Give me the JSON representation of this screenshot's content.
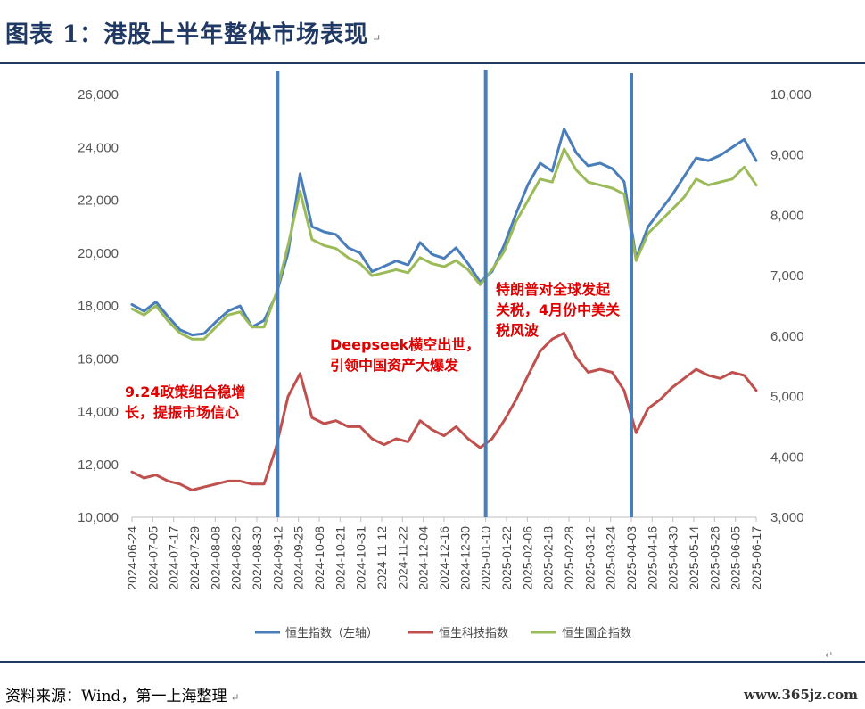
{
  "header": {
    "title": "图表 1：港股上半年整体市场表现",
    "mark": "↵"
  },
  "footer": {
    "source": "资料来源：Wind，第一上海整理",
    "mark": "↵",
    "watermark": "www.365jz.com",
    "corner_mark": "↵"
  },
  "chart_data": {
    "type": "line",
    "title": "",
    "xlabel": "",
    "ylabel": "",
    "y_left": {
      "lim": [
        10000,
        26000
      ],
      "ticks": [
        "10,000",
        "12,000",
        "14,000",
        "16,000",
        "18,000",
        "20,000",
        "22,000",
        "24,000",
        "26,000"
      ]
    },
    "y_right": {
      "lim": [
        3000,
        10000
      ],
      "ticks": [
        "3,000",
        "4,000",
        "5,000",
        "6,000",
        "7,000",
        "8,000",
        "9,000",
        "10,000"
      ]
    },
    "x_ticks": [
      "2024-06-24",
      "2024-07-05",
      "2024-07-17",
      "2024-07-29",
      "2024-08-08",
      "2024-08-20",
      "2024-08-30",
      "2024-09-12",
      "2024-09-25",
      "2024-10-08",
      "2024-10-21",
      "2024-10-31",
      "2024-11-12",
      "2024-11-22",
      "2024-12-04",
      "2024-12-16",
      "2024-12-30",
      "2025-01-10",
      "2025-01-22",
      "2025-02-06",
      "2025-02-18",
      "2025-02-28",
      "2025-03-12",
      "2025-03-24",
      "2025-04-03",
      "2025-04-16",
      "2025-04-30",
      "2025-05-14",
      "2025-05-26",
      "2025-06-05",
      "2025-06-17"
    ],
    "legend_position": "bottom",
    "series": [
      {
        "name": "恒生指数（左轴）",
        "axis": "left",
        "color": "#4a7ebb",
        "values": [
          18050,
          17800,
          18150,
          17600,
          17100,
          16900,
          16950,
          17400,
          17800,
          18000,
          17200,
          17450,
          18400,
          20000,
          23000,
          21000,
          20800,
          20700,
          20200,
          20000,
          19300,
          19500,
          19700,
          19550,
          20400,
          19950,
          19800,
          20200,
          19600,
          18900,
          19300,
          20300,
          21500,
          22600,
          23400,
          23100,
          24700,
          23800,
          23300,
          23400,
          23200,
          22700,
          19800,
          21000,
          21600,
          22200,
          22900,
          23600,
          23500,
          23700,
          24000,
          24300,
          23500
        ]
      },
      {
        "name": "恒生科技指数",
        "axis": "right",
        "color": "#c0504d",
        "values": [
          3750,
          3650,
          3700,
          3600,
          3550,
          3450,
          3500,
          3550,
          3600,
          3600,
          3550,
          3550,
          4150,
          5000,
          5380,
          4650,
          4550,
          4600,
          4500,
          4500,
          4300,
          4200,
          4300,
          4250,
          4600,
          4450,
          4350,
          4500,
          4300,
          4150,
          4300,
          4600,
          4950,
          5350,
          5750,
          5950,
          6050,
          5650,
          5400,
          5450,
          5400,
          5100,
          4400,
          4800,
          4950,
          5150,
          5300,
          5450,
          5350,
          5300,
          5400,
          5350,
          5100
        ]
      },
      {
        "name": "恒生国企指数",
        "axis": "right",
        "color": "#9bbb59",
        "values": [
          6450,
          6350,
          6500,
          6250,
          6050,
          5950,
          5950,
          6150,
          6350,
          6400,
          6150,
          6150,
          6700,
          7500,
          8400,
          7600,
          7500,
          7450,
          7300,
          7200,
          7000,
          7050,
          7100,
          7050,
          7300,
          7200,
          7150,
          7250,
          7100,
          6850,
          7100,
          7400,
          7900,
          8250,
          8600,
          8550,
          9100,
          8750,
          8550,
          8500,
          8450,
          8350,
          7250,
          7700,
          7900,
          8100,
          8300,
          8600,
          8500,
          8550,
          8600,
          8800,
          8500
        ]
      }
    ],
    "event_lines": [
      {
        "date": "2024-09-12",
        "color": "#4a7ebb"
      },
      {
        "date": "2025-01-10",
        "color": "#4a7ebb"
      },
      {
        "date": "2025-04-03",
        "color": "#4a7ebb"
      }
    ],
    "annotations": [
      {
        "lines": [
          "9.24政策组合稳增",
          "长，提振市场信心"
        ]
      },
      {
        "lines": [
          "Deepseek横空出世，",
          "引领中国资产大爆发"
        ]
      },
      {
        "lines": [
          "特朗普对全球发起",
          "关税，4月份中美关",
          "税风波"
        ]
      }
    ]
  }
}
